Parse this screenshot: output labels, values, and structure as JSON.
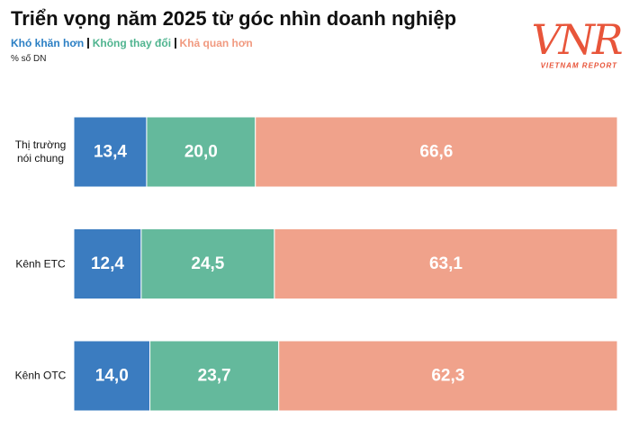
{
  "chart_data": {
    "type": "stacked-bar-horizontal",
    "title": "Triển vọng năm 2025 từ góc nhìn doanh nghiệp",
    "unit_note": "% số DN",
    "categories": [
      "Thị trường nói chung",
      "Kênh ETC",
      "Kênh OTC"
    ],
    "xlim": [
      0,
      100
    ],
    "series": [
      {
        "name": "Khó khăn hơn",
        "color": "#3b7cc0",
        "legend_color": "#2b7fc4",
        "values": [
          13.4,
          12.4,
          14.0
        ],
        "value_labels": [
          "13,4",
          "12,4",
          "14,0"
        ]
      },
      {
        "name": "Không thay đổi",
        "color": "#64b99c",
        "legend_color": "#4fb48f",
        "values": [
          20.0,
          24.5,
          23.7
        ],
        "value_labels": [
          "20,0",
          "24,5",
          "23,7"
        ]
      },
      {
        "name": "Khả quan hơn",
        "color": "#f0a28b",
        "legend_color": "#f19a80",
        "values": [
          66.6,
          63.1,
          62.3
        ],
        "value_labels": [
          "66,6",
          "63,1",
          "62,3"
        ]
      }
    ]
  },
  "logo": {
    "mark": "VNR",
    "text": "VIETNAM REPORT"
  }
}
